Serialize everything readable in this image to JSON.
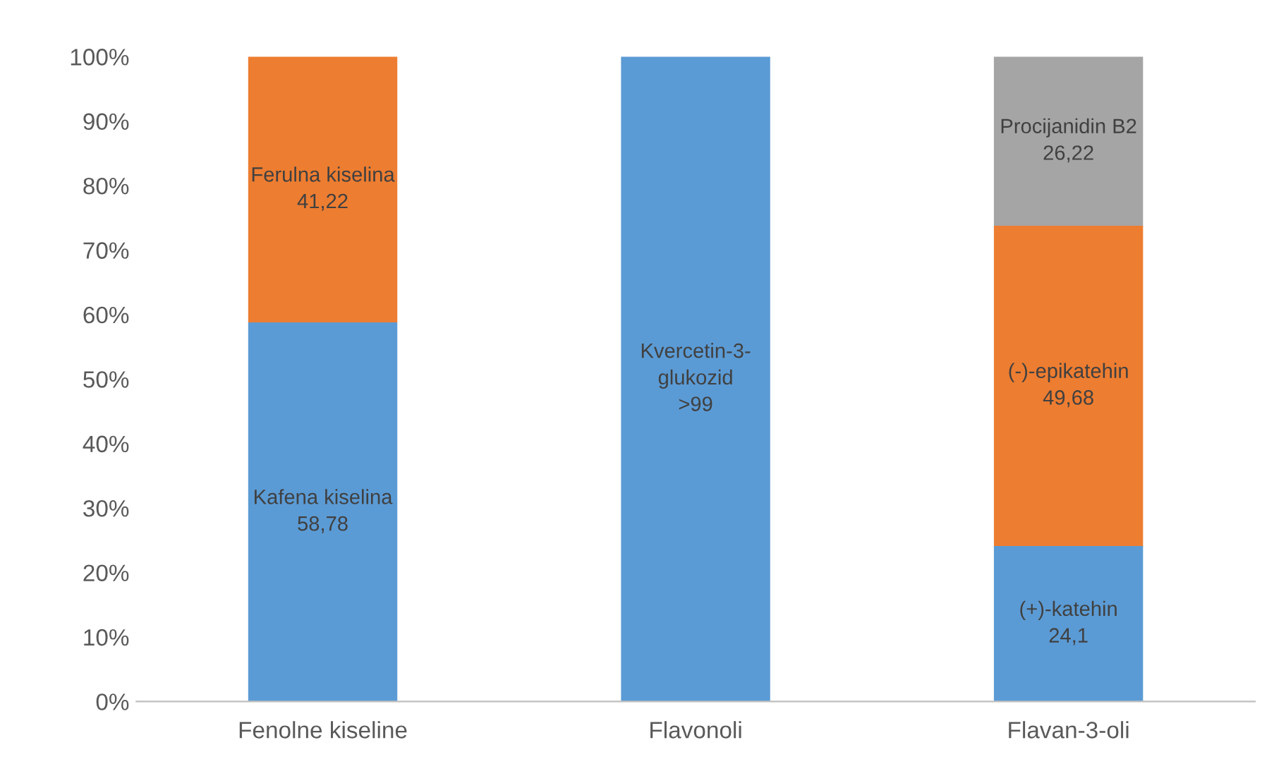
{
  "chart_data": {
    "type": "bar",
    "stacked": true,
    "categories": [
      "Fenolne kiseline",
      "Flavonoli",
      "Flavan-3-oli"
    ],
    "series": [
      {
        "color": "#5b9bd5",
        "values": [
          58.78,
          100,
          24.1
        ],
        "value_labels": [
          "Kafena kiselina\n58,78",
          "Kvercetin-3-\nglukozid\n>99",
          "(+)-katehin\n24,1"
        ]
      },
      {
        "color": "#ed7d31",
        "values": [
          41.22,
          null,
          49.68
        ],
        "value_labels": [
          "Ferulna kiselina\n41,22",
          null,
          "(-)-epikatehin\n49,68"
        ]
      },
      {
        "color": "#a5a5a5",
        "values": [
          null,
          null,
          26.22
        ],
        "value_labels": [
          null,
          null,
          "Procijanidin B2\n26,22"
        ]
      }
    ],
    "ylim": [
      0,
      100
    ],
    "yticks": [
      {
        "value": 0,
        "label": "0%"
      },
      {
        "value": 10,
        "label": "10%"
      },
      {
        "value": 20,
        "label": "20%"
      },
      {
        "value": 30,
        "label": "30%"
      },
      {
        "value": 40,
        "label": "40%"
      },
      {
        "value": 50,
        "label": "50%"
      },
      {
        "value": 60,
        "label": "60%"
      },
      {
        "value": 70,
        "label": "70%"
      },
      {
        "value": 80,
        "label": "80%"
      },
      {
        "value": 90,
        "label": "90%"
      },
      {
        "value": 100,
        "label": "100%"
      }
    ],
    "grid": false
  }
}
